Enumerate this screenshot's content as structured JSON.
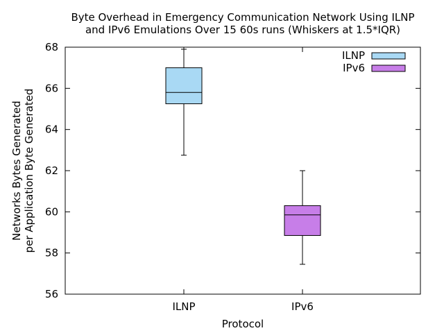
{
  "chart_data": {
    "type": "boxplot",
    "title_lines": [
      "Byte Overhead in Emergency Communication Network Using ILNP",
      "and IPv6 Emulations Over 15 60s runs (Whiskers at 1.5*IQR)"
    ],
    "xlabel": "Protocol",
    "ylabel_lines": [
      "Networks Bytes Generated",
      "per Application Byte Generated"
    ],
    "ylim": [
      56,
      68
    ],
    "yticks": [
      56,
      58,
      60,
      62,
      64,
      66,
      68
    ],
    "categories": [
      "ILNP",
      "IPv6"
    ],
    "series": [
      {
        "name": "ILNP",
        "color": "#a9d9f4",
        "whisker_low": 62.75,
        "q1": 65.25,
        "median": 65.8,
        "q3": 67.0,
        "whisker_high": 67.9
      },
      {
        "name": "IPv6",
        "color": "#c77ee8",
        "whisker_low": 57.45,
        "q1": 58.85,
        "median": 59.85,
        "q3": 60.3,
        "whisker_high": 62.0
      }
    ],
    "legend_position": "top-right",
    "grid": false
  }
}
